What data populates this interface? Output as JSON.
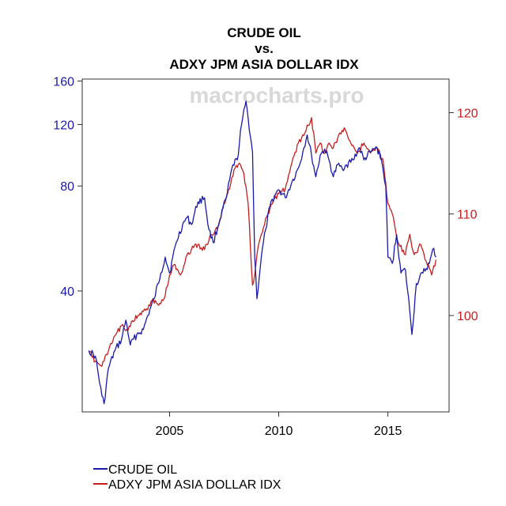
{
  "chart_data": {
    "type": "line",
    "title_lines": [
      "CRUDE OIL",
      "vs.",
      "ADXY JPM ASIA DOLLAR IDX"
    ],
    "watermark": "macrocharts.pro",
    "x_ticks": [
      2005,
      2010,
      2015
    ],
    "xlim": [
      2001,
      2017.8
    ],
    "y_left": {
      "scale": "log",
      "ticks": [
        40,
        80,
        120,
        160
      ],
      "ylim": [
        18,
        162
      ],
      "color": "#1a1aa8"
    },
    "y_right": {
      "ticks": [
        100,
        110,
        120
      ],
      "ylim": [
        90.5,
        123.3
      ],
      "color": "#c41e1e"
    },
    "series": [
      {
        "name": "CRUDE OIL",
        "axis": "left",
        "color": "#1a1aa8",
        "x": [
          2001.3,
          2001.6,
          2001.9,
          2002.0,
          2002.2,
          2002.5,
          2002.8,
          2003.0,
          2003.2,
          2003.5,
          2003.8,
          2004.0,
          2004.3,
          2004.6,
          2004.8,
          2005.0,
          2005.3,
          2005.6,
          2005.8,
          2006.0,
          2006.3,
          2006.6,
          2006.8,
          2007.0,
          2007.3,
          2007.6,
          2007.9,
          2008.1,
          2008.3,
          2008.5,
          2008.6,
          2008.8,
          2008.9,
          2009.0,
          2009.2,
          2009.4,
          2009.6,
          2009.8,
          2010.0,
          2010.3,
          2010.6,
          2010.9,
          2011.1,
          2011.3,
          2011.5,
          2011.7,
          2011.9,
          2012.1,
          2012.3,
          2012.5,
          2012.7,
          2012.9,
          2013.1,
          2013.4,
          2013.7,
          2013.9,
          2014.2,
          2014.5,
          2014.7,
          2014.9,
          2015.0,
          2015.2,
          2015.4,
          2015.6,
          2015.8,
          2016.0,
          2016.1,
          2016.3,
          2016.6,
          2016.9,
          2017.1,
          2017.2
        ],
        "y": [
          27,
          26,
          20,
          19,
          24,
          27,
          29,
          33,
          28,
          30,
          31,
          34,
          38,
          45,
          50,
          45,
          55,
          62,
          65,
          62,
          72,
          74,
          60,
          55,
          64,
          74,
          92,
          95,
          120,
          140,
          125,
          100,
          50,
          38,
          50,
          60,
          70,
          75,
          78,
          74,
          82,
          90,
          100,
          112,
          98,
          85,
          98,
          102,
          95,
          85,
          92,
          90,
          92,
          95,
          103,
          95,
          100,
          103,
          95,
          80,
          50,
          48,
          58,
          45,
          46,
          35,
          30,
          42,
          45,
          48,
          53,
          50
        ]
      },
      {
        "name": "ADXY JPM ASIA DOLLAR IDX",
        "axis": "right",
        "color": "#c41e1e",
        "x": [
          2001.3,
          2001.6,
          2001.9,
          2002.2,
          2002.5,
          2002.8,
          2003.0,
          2003.3,
          2003.6,
          2003.9,
          2004.2,
          2004.5,
          2004.8,
          2005.0,
          2005.2,
          2005.5,
          2005.8,
          2006.0,
          2006.3,
          2006.6,
          2006.9,
          2007.2,
          2007.5,
          2007.8,
          2008.0,
          2008.2,
          2008.4,
          2008.6,
          2008.8,
          2008.9,
          2009.0,
          2009.2,
          2009.5,
          2009.8,
          2010.0,
          2010.3,
          2010.6,
          2010.9,
          2011.2,
          2011.5,
          2011.7,
          2011.9,
          2012.1,
          2012.3,
          2012.5,
          2012.8,
          2013.0,
          2013.3,
          2013.6,
          2013.9,
          2014.2,
          2014.5,
          2014.8,
          2015.0,
          2015.2,
          2015.5,
          2015.8,
          2016.0,
          2016.2,
          2016.5,
          2016.8,
          2017.0,
          2017.2
        ],
        "y": [
          96.5,
          95.5,
          95,
          96.5,
          98,
          99,
          98.5,
          99.5,
          100,
          100.5,
          101.5,
          101,
          102,
          104,
          105,
          104,
          106,
          106.5,
          107,
          106.5,
          108,
          108.5,
          111,
          113,
          114.5,
          115,
          114,
          111,
          103,
          104,
          106,
          108,
          110,
          111.5,
          112,
          112.5,
          115,
          117,
          118,
          119.5,
          116,
          117,
          116,
          117,
          116.5,
          118,
          118.5,
          117,
          116,
          117,
          116,
          116.5,
          115,
          111,
          110,
          107,
          106,
          108,
          106,
          107,
          105,
          104,
          105.5
        ]
      }
    ],
    "legend": {
      "position": "bottom-left",
      "entries": [
        "CRUDE OIL",
        "ADXY JPM ASIA DOLLAR IDX"
      ]
    },
    "grid": false
  }
}
